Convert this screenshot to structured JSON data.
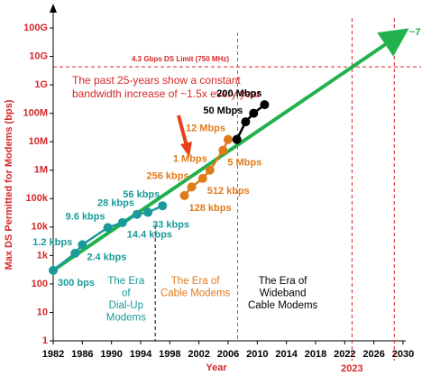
{
  "chart_data": {
    "type": "scatter",
    "ylabel": "Max DS Permitted for Modems (bps)",
    "xlabel": "Year",
    "axis_label_color": "#d62728",
    "xlim": [
      1982,
      2030
    ],
    "xticks": [
      1982,
      1986,
      1990,
      1994,
      1998,
      2002,
      2006,
      2010,
      2014,
      2018,
      2022,
      2026,
      2030
    ],
    "log_y": true,
    "ylim": [
      1,
      100000000000
    ],
    "yticks": [
      1,
      10,
      100,
      {
        "value": 1000,
        "label": "1k"
      },
      {
        "value": 10000,
        "label": "10k"
      },
      {
        "value": 100000,
        "label": "100k"
      },
      {
        "value": 1000000,
        "label": "1M"
      },
      {
        "value": 10000000,
        "label": "10M"
      },
      {
        "value": 100000000,
        "label": "100M"
      },
      {
        "value": 1000000000,
        "label": "1G"
      },
      {
        "value": 10000000000,
        "label": "10G"
      },
      {
        "value": 100000000000,
        "label": "100G"
      }
    ],
    "limit_line": {
      "value": 4300000000,
      "label": "4.3 Gbps DS Limit (750 MHz)",
      "color": "#d62728"
    },
    "year_markers": [
      {
        "value": 2023,
        "label": "2023",
        "color": "#d62728"
      },
      {
        "value": 2028.8,
        "color": "#d62728"
      }
    ],
    "era_dividers": [
      {
        "value": 1996,
        "color": "#000000"
      },
      {
        "value": 2007.3,
        "color": "#777777"
      }
    ],
    "annotation": [
      "The past 25-years show a constant",
      "bandwidth increase of ~1.5x every year"
    ],
    "eras": [
      {
        "lines": [
          "The Era",
          "of",
          "Dial-Up",
          "Modems"
        ],
        "color": "#1a9a9a",
        "x": 1992
      },
      {
        "lines": [
          "The Era of",
          "Cable Modems"
        ],
        "color": "#e07b1a",
        "x": 2001.5
      },
      {
        "lines": [
          "The Era of",
          "Wideband",
          "Cable Modems"
        ],
        "color": "#000000",
        "x": 2013.5
      }
    ],
    "trend": {
      "color": "#22b14c",
      "x": [
        1982,
        2030
      ],
      "values": [
        300,
        70000000000
      ],
      "label": "~7"
    },
    "series": [
      {
        "color": "#1a9a9a",
        "x": [
          1982,
          1985,
          1986,
          1989.5,
          1991.5,
          1993.5,
          1995,
          1997
        ],
        "values": [
          300,
          1200,
          2400,
          9600,
          14400,
          28000,
          33000,
          56000
        ],
        "value_labels": [
          "300 bps",
          "1.2 kbps",
          "2.4 kbps",
          "9.6 kbps",
          "14.4 kbps",
          "28 kbps",
          "33 kbps",
          "56 kbps"
        ]
      },
      {
        "color": "#e07b1a",
        "x": [
          2000,
          2001,
          2002.5,
          2003.5,
          2005.3,
          2006
        ],
        "values": [
          128000,
          256000,
          512000,
          1000000,
          5000000,
          12000000
        ],
        "value_labels": [
          "128 kbps",
          "256 kbps",
          "512 kbps",
          "1 Mbps",
          "5 Mbps",
          "12 Mbps"
        ]
      },
      {
        "color": "#000000",
        "x": [
          2007.2,
          2008.4,
          2009.5,
          2011
        ],
        "values": [
          12000000,
          50000000,
          100000000,
          200000000
        ],
        "value_labels": [
          null,
          "50 Mbps",
          null,
          "200 Mbps"
        ]
      }
    ]
  }
}
